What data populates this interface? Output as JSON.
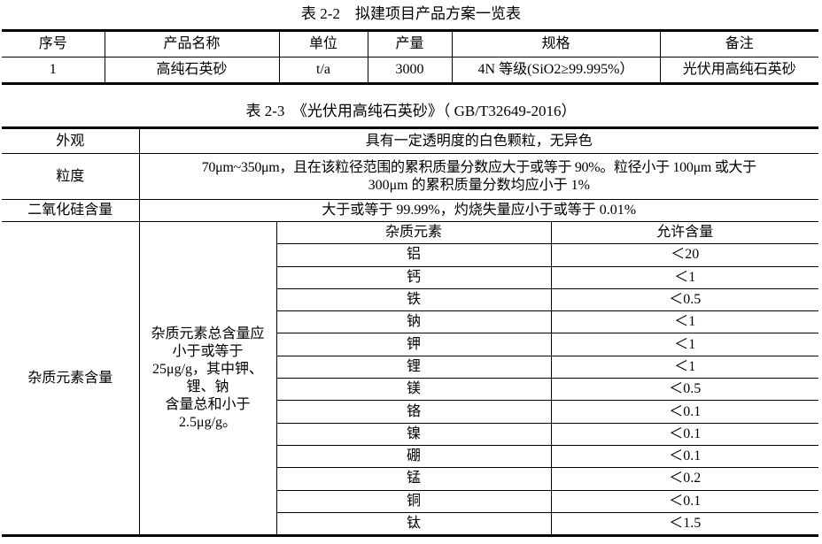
{
  "table_2_2": {
    "title": "表 2-2　拟建项目产品方案一览表",
    "headers": [
      "序号",
      "产品名称",
      "单位",
      "产量",
      "规格",
      "备注"
    ],
    "rows": [
      [
        "1",
        "高纯石英砂",
        "t/a",
        "3000",
        "4N 等级(SiO2≥99.995%）",
        "光伏用高纯石英砂"
      ]
    ]
  },
  "table_2_3": {
    "title": "表 2-3　《光伏用高纯石英砂》（ GB/T32649-2016）",
    "appearance": {
      "label": "外观",
      "value": "具有一定透明度的白色颗粒，无异色"
    },
    "granularity": {
      "label": "粒度",
      "value_line1": "70μm~350μm，且在该粒径范围的累积质量分数应大于或等于 90%。粒径小于 100μm 或大于",
      "value_line2": "300μm 的累积质量分数均应小于 1%"
    },
    "silica": {
      "label": "二氧化硅含量",
      "value": "大于或等于 99.99%，灼烧失量应小于或等于 0.01%"
    },
    "impurity": {
      "label": "杂质元素含量",
      "description_lines": [
        "杂质元素总含量应",
        "小于或等于",
        "25μg/g，其中钾、",
        "锂、钠",
        "含量总和小于",
        "2.5μg/g。"
      ],
      "headers": [
        "杂质元素",
        "允许含量"
      ],
      "rows": [
        [
          "铝",
          "＜20"
        ],
        [
          "钙",
          "＜1"
        ],
        [
          "铁",
          "＜0.5"
        ],
        [
          "钠",
          "＜1"
        ],
        [
          "钾",
          "＜1"
        ],
        [
          "锂",
          "＜1"
        ],
        [
          "镁",
          "＜0.5"
        ],
        [
          "铬",
          "＜0.1"
        ],
        [
          "镍",
          "＜0.1"
        ],
        [
          "硼",
          "＜0.1"
        ],
        [
          "锰",
          "＜0.2"
        ],
        [
          "铜",
          "＜0.1"
        ],
        [
          "钛",
          "＜1.5"
        ]
      ]
    }
  }
}
